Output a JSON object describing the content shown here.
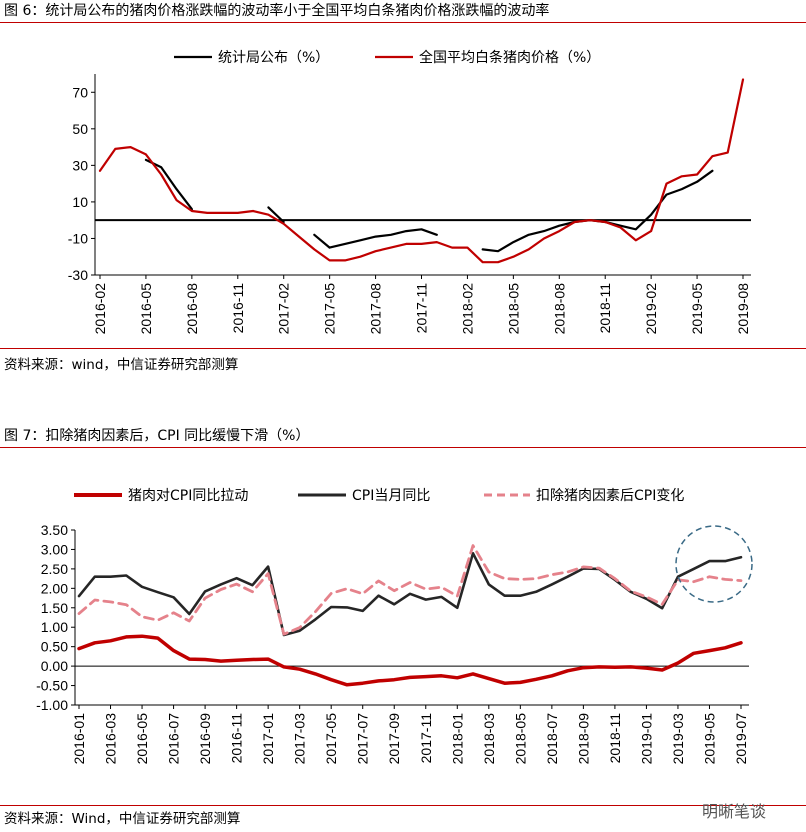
{
  "chart6": {
    "header": "图 6：统计局公布的猪肉价格涨跌幅的波动率小于全国平均白条猪肉价格涨跌幅的波动率",
    "source": "资料来源：wind，中信证券研究部测算",
    "chart_data": {
      "type": "line",
      "title": "",
      "ylim": [
        -30,
        80
      ],
      "y_ticks": [
        "-30",
        "-10",
        "10",
        "30",
        "50",
        "70"
      ],
      "y_tick_values": [
        -30,
        -10,
        10,
        30,
        50,
        70
      ],
      "x": [
        "2016-02",
        "2016-03",
        "2016-04",
        "2016-05",
        "2016-06",
        "2016-07",
        "2016-08",
        "2016-09",
        "2016-10",
        "2016-11",
        "2016-12",
        "2017-01",
        "2017-02",
        "2017-03",
        "2017-04",
        "2017-05",
        "2017-06",
        "2017-07",
        "2017-08",
        "2017-09",
        "2017-10",
        "2017-11",
        "2017-12",
        "2018-01",
        "2018-02",
        "2018-03",
        "2018-04",
        "2018-05",
        "2018-06",
        "2018-07",
        "2018-08",
        "2018-09",
        "2018-10",
        "2018-11",
        "2018-12",
        "2019-01",
        "2019-02",
        "2019-03",
        "2019-04",
        "2019-05",
        "2019-06",
        "2019-07",
        "2019-08"
      ],
      "x_tick_labels": [
        "2016-02",
        "2016-05",
        "2016-08",
        "2016-11",
        "2017-02",
        "2017-05",
        "2017-08",
        "2017-11",
        "2018-02",
        "2018-05",
        "2018-08",
        "2018-11",
        "2019-02",
        "2019-05",
        "2019-08"
      ],
      "x_tick_indices": [
        0,
        3,
        6,
        9,
        12,
        15,
        18,
        21,
        24,
        27,
        30,
        33,
        36,
        39,
        42
      ],
      "series": [
        {
          "name": "统计局公布（%）",
          "color": "#000000",
          "values": [
            null,
            null,
            null,
            33,
            29,
            17,
            6,
            null,
            null,
            null,
            null,
            7,
            -1,
            null,
            -8,
            -15,
            -13,
            -11,
            -9,
            -8,
            -6,
            -5,
            -8,
            null,
            null,
            -16,
            -17,
            -12,
            -8,
            -6,
            -3,
            -1,
            0,
            -1,
            -3,
            -5,
            3,
            14,
            17,
            21,
            27,
            null,
            null
          ]
        },
        {
          "name": "全国平均白条猪肉价格（%）",
          "color": "#c00000",
          "values": [
            27,
            39,
            40,
            36,
            25,
            11,
            5,
            4,
            4,
            4,
            5,
            3,
            -2,
            -9,
            -16,
            -22,
            -22,
            -20,
            -17,
            -15,
            -13,
            -13,
            -12,
            -15,
            -15,
            -23,
            -23,
            -20,
            -16,
            -10,
            -6,
            -1,
            0,
            -1,
            -4,
            -11,
            -6,
            20,
            24,
            25,
            35,
            37,
            77
          ]
        }
      ]
    }
  },
  "chart7": {
    "header": "图 7：扣除猪肉因素后，CPI 同比缓慢下滑（%）",
    "source": "资料来源：Wind，中信证券研究部测算",
    "watermark": "明晰笔谈",
    "chart_data": {
      "type": "line",
      "title": "",
      "ylim": [
        -1.0,
        3.5
      ],
      "y_ticks": [
        "-1.00",
        "-0.50",
        "0.00",
        "0.50",
        "1.00",
        "1.50",
        "2.00",
        "2.50",
        "3.00",
        "3.50"
      ],
      "y_tick_values": [
        -1.0,
        -0.5,
        0.0,
        0.5,
        1.0,
        1.5,
        2.0,
        2.5,
        3.0,
        3.5
      ],
      "x": [
        "2016-01",
        "2016-02",
        "2016-03",
        "2016-04",
        "2016-05",
        "2016-06",
        "2016-07",
        "2016-08",
        "2016-09",
        "2016-10",
        "2016-11",
        "2016-12",
        "2017-01",
        "2017-02",
        "2017-03",
        "2017-04",
        "2017-05",
        "2017-06",
        "2017-07",
        "2017-08",
        "2017-09",
        "2017-10",
        "2017-11",
        "2017-12",
        "2018-01",
        "2018-02",
        "2018-03",
        "2018-04",
        "2018-05",
        "2018-06",
        "2018-07",
        "2018-08",
        "2018-09",
        "2018-10",
        "2018-11",
        "2018-12",
        "2019-01",
        "2019-02",
        "2019-03",
        "2019-04",
        "2019-05",
        "2019-06",
        "2019-07"
      ],
      "x_tick_labels": [
        "2016-01",
        "2016-03",
        "2016-05",
        "2016-07",
        "2016-09",
        "2016-11",
        "2017-01",
        "2017-03",
        "2017-05",
        "2017-07",
        "2017-09",
        "2017-11",
        "2018-01",
        "2018-03",
        "2018-05",
        "2018-07",
        "2018-09",
        "2018-11",
        "2019-01",
        "2019-03",
        "2019-05",
        "2019-07"
      ],
      "x_tick_indices": [
        0,
        2,
        4,
        6,
        8,
        10,
        12,
        14,
        16,
        18,
        20,
        22,
        24,
        26,
        28,
        30,
        32,
        34,
        36,
        38,
        40,
        42
      ],
      "series": [
        {
          "name": "猪肉对CPI同比拉动",
          "color": "#c00000",
          "style": "solid",
          "values": [
            0.45,
            0.6,
            0.65,
            0.75,
            0.77,
            0.72,
            0.4,
            0.18,
            0.17,
            0.13,
            0.15,
            0.17,
            0.18,
            -0.02,
            -0.08,
            -0.2,
            -0.35,
            -0.48,
            -0.44,
            -0.38,
            -0.35,
            -0.29,
            -0.27,
            -0.25,
            -0.3,
            -0.2,
            -0.32,
            -0.44,
            -0.42,
            -0.34,
            -0.25,
            -0.12,
            -0.04,
            -0.02,
            -0.03,
            -0.02,
            -0.05,
            -0.1,
            0.08,
            0.33,
            0.4,
            0.47,
            0.6
          ]
        },
        {
          "name": "CPI当月同比",
          "color": "#262626",
          "style": "solid",
          "values": [
            1.8,
            2.3,
            2.3,
            2.33,
            2.04,
            1.9,
            1.77,
            1.34,
            1.92,
            2.1,
            2.26,
            2.08,
            2.56,
            0.8,
            0.91,
            1.2,
            1.52,
            1.51,
            1.42,
            1.81,
            1.59,
            1.86,
            1.71,
            1.78,
            1.5,
            2.9,
            2.1,
            1.81,
            1.81,
            1.91,
            2.1,
            2.3,
            2.51,
            2.5,
            2.22,
            1.91,
            1.73,
            1.49,
            2.3,
            2.5,
            2.7,
            2.7,
            2.8
          ]
        },
        {
          "name": "扣除猪肉因素后CPI变化",
          "color": "#e5828b",
          "style": "dashed",
          "values": [
            1.35,
            1.7,
            1.65,
            1.58,
            1.27,
            1.18,
            1.37,
            1.16,
            1.75,
            1.97,
            2.11,
            1.91,
            2.38,
            0.82,
            0.99,
            1.4,
            1.87,
            1.99,
            1.86,
            2.19,
            1.94,
            2.15,
            1.98,
            2.03,
            1.8,
            3.1,
            2.42,
            2.25,
            2.23,
            2.25,
            2.35,
            2.42,
            2.55,
            2.52,
            2.25,
            1.93,
            1.78,
            1.59,
            2.22,
            2.17,
            2.3,
            2.23,
            2.2
          ]
        }
      ]
    }
  }
}
